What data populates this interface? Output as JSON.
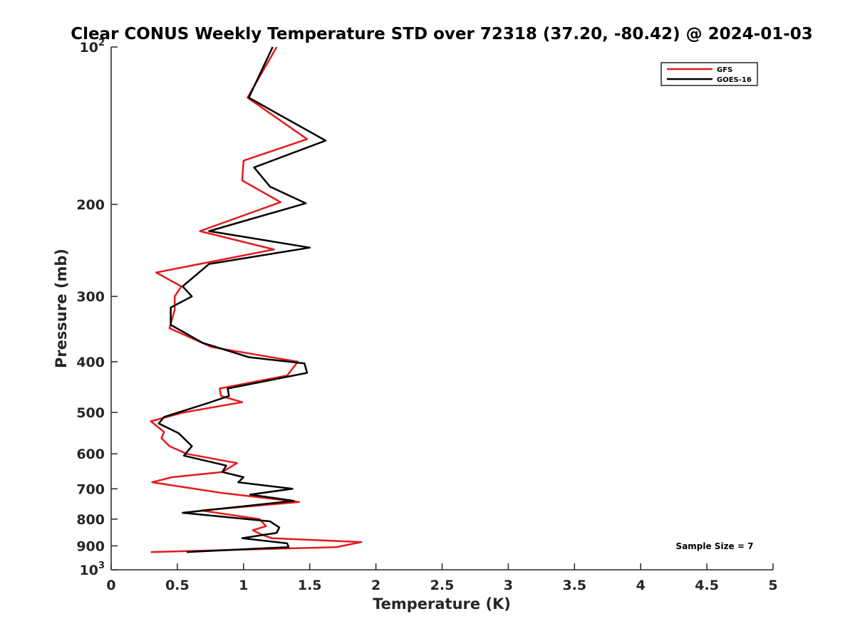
{
  "chart_data": {
    "type": "line",
    "title": "Clear CONUS Weekly Temperature STD over 72318 (37.20, -80.42) @ 2024-01-03",
    "xlabel": "Temperature (K)",
    "ylabel": "Pressure (mb)",
    "xlim": [
      0,
      5
    ],
    "ylim": [
      100,
      1000
    ],
    "y_scale": "log",
    "y_reversed": true,
    "grid": false,
    "legend_position": "top-right",
    "x_ticks": [
      {
        "value": 0,
        "label": "0"
      },
      {
        "value": 0.5,
        "label": "0.5"
      },
      {
        "value": 1,
        "label": "1"
      },
      {
        "value": 1.5,
        "label": "1.5"
      },
      {
        "value": 2,
        "label": "2"
      },
      {
        "value": 2.5,
        "label": "2.5"
      },
      {
        "value": 3,
        "label": "3"
      },
      {
        "value": 3.5,
        "label": "3.5"
      },
      {
        "value": 4,
        "label": "4"
      },
      {
        "value": 4.5,
        "label": "4.5"
      },
      {
        "value": 5,
        "label": "5"
      }
    ],
    "y_ticks": [
      {
        "value": 100,
        "base": "10",
        "exp": "2"
      },
      {
        "value": 200,
        "base": "200",
        "exp": ""
      },
      {
        "value": 300,
        "base": "300",
        "exp": ""
      },
      {
        "value": 400,
        "base": "400",
        "exp": ""
      },
      {
        "value": 500,
        "base": "500",
        "exp": ""
      },
      {
        "value": 600,
        "base": "600",
        "exp": ""
      },
      {
        "value": 700,
        "base": "700",
        "exp": ""
      },
      {
        "value": 800,
        "base": "800",
        "exp": ""
      },
      {
        "value": 900,
        "base": "900",
        "exp": ""
      },
      {
        "value": 1000,
        "base": "10",
        "exp": "3"
      }
    ],
    "series": [
      {
        "name": "GFS",
        "color": "#e41a1c",
        "points": [
          [
            1.25,
            100
          ],
          [
            1.03,
            125
          ],
          [
            1.48,
            150
          ],
          [
            1.0,
            165
          ],
          [
            0.99,
            180
          ],
          [
            1.28,
            198
          ],
          [
            0.67,
            225
          ],
          [
            1.23,
            244
          ],
          [
            0.34,
            270
          ],
          [
            0.53,
            287
          ],
          [
            0.48,
            300
          ],
          [
            0.48,
            318
          ],
          [
            0.44,
            345
          ],
          [
            0.76,
            375
          ],
          [
            1.41,
            400
          ],
          [
            1.33,
            425
          ],
          [
            0.82,
            450
          ],
          [
            0.83,
            465
          ],
          [
            0.99,
            478
          ],
          [
            0.55,
            500
          ],
          [
            0.3,
            520
          ],
          [
            0.4,
            545
          ],
          [
            0.38,
            560
          ],
          [
            0.44,
            580
          ],
          [
            0.57,
            600
          ],
          [
            0.95,
            625
          ],
          [
            0.84,
            650
          ],
          [
            0.46,
            665
          ],
          [
            0.31,
            680
          ],
          [
            0.82,
            712
          ],
          [
            1.42,
            742
          ],
          [
            0.68,
            770
          ],
          [
            1.12,
            800
          ],
          [
            1.17,
            825
          ],
          [
            1.07,
            840
          ],
          [
            1.13,
            855
          ],
          [
            1.21,
            870
          ],
          [
            1.89,
            885
          ],
          [
            1.7,
            905
          ],
          [
            0.3,
            925
          ]
        ]
      },
      {
        "name": "GOES-16",
        "color": "#000000",
        "points": [
          [
            1.22,
            100
          ],
          [
            1.04,
            125
          ],
          [
            1.62,
            151
          ],
          [
            1.08,
            170
          ],
          [
            1.2,
            185
          ],
          [
            1.47,
            199
          ],
          [
            0.74,
            225
          ],
          [
            1.5,
            242
          ],
          [
            0.74,
            260
          ],
          [
            0.54,
            287
          ],
          [
            0.61,
            300
          ],
          [
            0.45,
            315
          ],
          [
            0.45,
            340
          ],
          [
            0.69,
            368
          ],
          [
            1.04,
            392
          ],
          [
            1.46,
            403
          ],
          [
            1.48,
            420
          ],
          [
            0.88,
            450
          ],
          [
            0.89,
            465
          ],
          [
            0.73,
            480
          ],
          [
            0.4,
            510
          ],
          [
            0.36,
            525
          ],
          [
            0.51,
            548
          ],
          [
            0.61,
            580
          ],
          [
            0.55,
            605
          ],
          [
            0.87,
            632
          ],
          [
            0.84,
            650
          ],
          [
            1.0,
            665
          ],
          [
            0.96,
            680
          ],
          [
            1.37,
            700
          ],
          [
            1.05,
            718
          ],
          [
            1.38,
            738
          ],
          [
            0.54,
            778
          ],
          [
            1.2,
            808
          ],
          [
            1.27,
            830
          ],
          [
            1.25,
            850
          ],
          [
            0.99,
            870
          ],
          [
            1.33,
            890
          ],
          [
            1.34,
            905
          ],
          [
            0.57,
            925
          ]
        ]
      }
    ],
    "annotation": "Sample Size = 7"
  }
}
